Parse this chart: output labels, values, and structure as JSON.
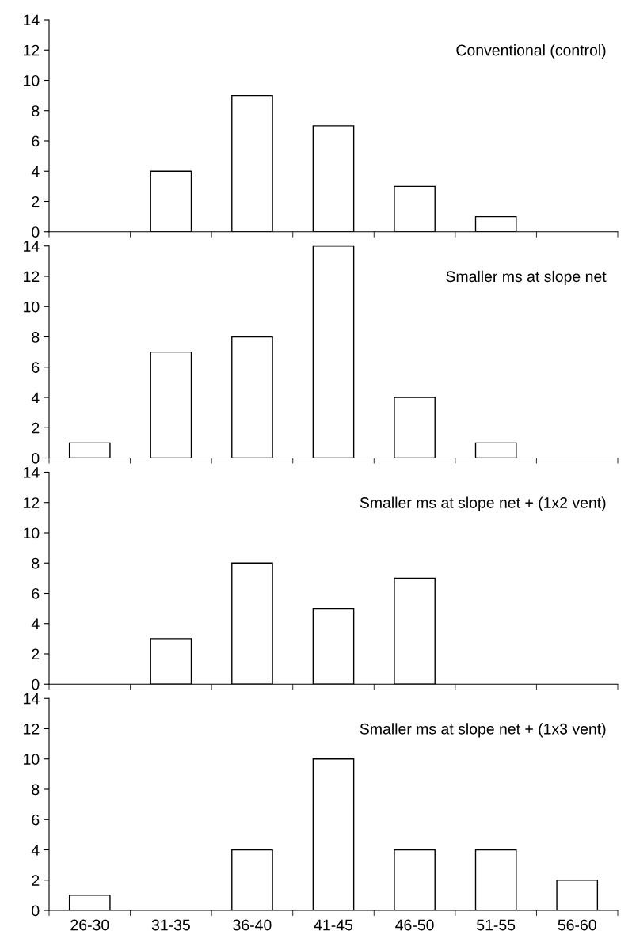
{
  "chart_data": [
    {
      "type": "bar",
      "title": "Conventional (control)",
      "categories": [
        null,
        null,
        null,
        null,
        null,
        null,
        null
      ],
      "values": [
        0,
        4,
        9,
        7,
        3,
        1,
        0
      ],
      "color": "#ffffff",
      "ylim": [
        0,
        14
      ],
      "yticks": [
        0,
        2,
        4,
        6,
        8,
        10,
        12,
        14
      ],
      "tick_labels": "y",
      "grid": false,
      "legend": false
    },
    {
      "type": "bar",
      "title": "Smaller ms at slope net",
      "categories": [
        null,
        null,
        null,
        null,
        null,
        null,
        null
      ],
      "values": [
        1,
        7,
        8,
        14,
        4,
        1,
        0
      ],
      "color": "#ffffff",
      "ylim": [
        0,
        14
      ],
      "yticks": [
        0,
        2,
        4,
        6,
        8,
        10,
        12,
        14
      ],
      "tick_labels": "y",
      "grid": false,
      "legend": false
    },
    {
      "type": "bar",
      "title": "Smaller ms at slope net + (1x2 vent)",
      "categories": [
        null,
        null,
        null,
        null,
        null,
        null,
        null
      ],
      "values": [
        0,
        3,
        8,
        5,
        7,
        0,
        0
      ],
      "color": "#ffffff",
      "ylim": [
        0,
        14
      ],
      "yticks": [
        0,
        2,
        4,
        6,
        8,
        10,
        12,
        14
      ],
      "tick_labels": "y",
      "grid": false,
      "legend": false
    },
    {
      "type": "bar",
      "title": "Smaller ms at slope net + (1x3 vent)",
      "categories": [
        "26-30",
        "31-35",
        "36-40",
        "41-45",
        "46-50",
        "51-55",
        "56-60"
      ],
      "values": [
        1,
        0,
        4,
        10,
        4,
        4,
        2
      ],
      "color": "#ffffff",
      "ylim": [
        0,
        14
      ],
      "yticks": [
        0,
        2,
        4,
        6,
        8,
        10,
        12,
        14
      ],
      "grid": false,
      "legend": false
    }
  ]
}
